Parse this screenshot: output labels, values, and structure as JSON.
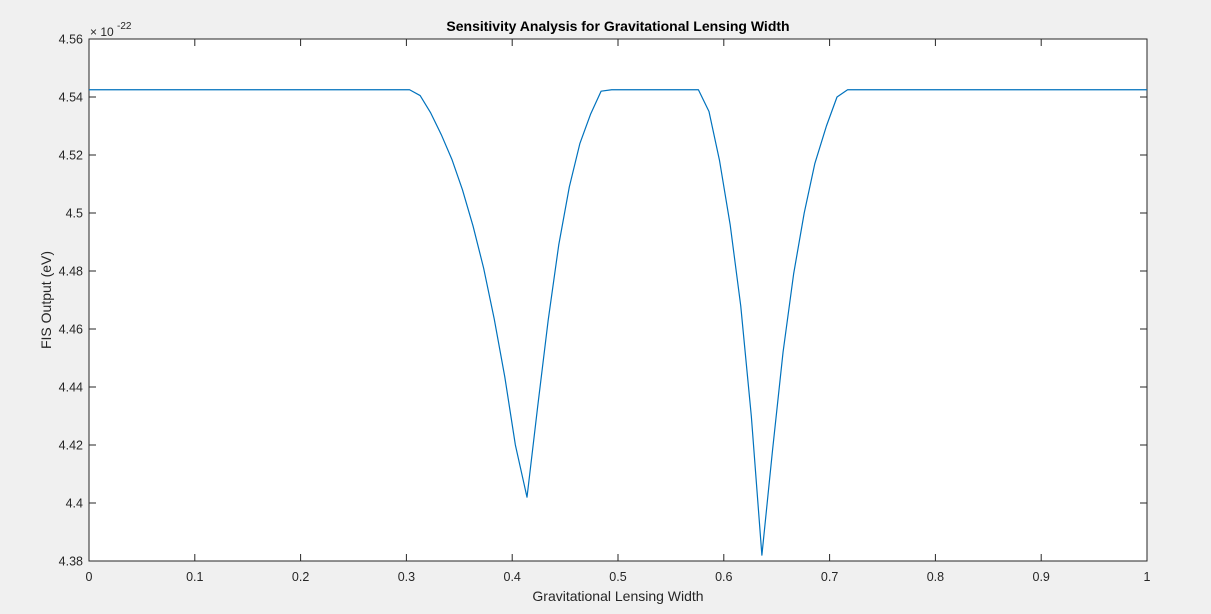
{
  "chart_data": {
    "type": "line",
    "title": "Sensitivity Analysis for Gravitational Lensing Width",
    "xlabel": "Gravitational Lensing Width",
    "ylabel": "FIS Output (eV)",
    "y_exponent_base": "× 10",
    "y_exponent_power": "-22",
    "xlim": [
      0,
      1
    ],
    "ylim": [
      4.38,
      4.56
    ],
    "x_ticks": [
      0,
      0.1,
      0.2,
      0.3,
      0.4,
      0.5,
      0.6,
      0.7,
      0.8,
      0.9,
      1
    ],
    "x_tick_labels": [
      "0",
      "0.1",
      "0.2",
      "0.3",
      "0.4",
      "0.5",
      "0.6",
      "0.7",
      "0.8",
      "0.9",
      "1"
    ],
    "y_ticks": [
      4.38,
      4.4,
      4.42,
      4.44,
      4.46,
      4.48,
      4.5,
      4.52,
      4.54,
      4.56
    ],
    "y_tick_labels": [
      "4.38",
      "4.4",
      "4.42",
      "4.44",
      "4.46",
      "4.48",
      "4.5",
      "4.52",
      "4.54",
      "4.56"
    ],
    "grid": false,
    "series": [
      {
        "color": "#0072bd",
        "x": [
          0,
          0.303,
          0.313,
          0.323,
          0.333,
          0.343,
          0.353,
          0.363,
          0.373,
          0.383,
          0.393,
          0.403,
          0.414,
          0.424,
          0.434,
          0.444,
          0.454,
          0.464,
          0.474,
          0.484,
          0.494,
          0.505,
          0.576,
          0.586,
          0.596,
          0.606,
          0.616,
          0.626,
          0.636,
          0.646,
          0.656,
          0.666,
          0.676,
          0.686,
          0.697,
          0.707,
          0.717,
          1
        ],
        "y": [
          4.5425,
          4.5425,
          4.5405,
          4.5345,
          4.527,
          4.5185,
          4.508,
          4.4955,
          4.481,
          4.4635,
          4.4435,
          4.42,
          4.402,
          4.433,
          4.463,
          4.489,
          4.509,
          4.524,
          4.534,
          4.542,
          4.5425,
          4.5425,
          4.5425,
          4.535,
          4.518,
          4.496,
          4.468,
          4.43,
          4.382,
          4.418,
          4.452,
          4.479,
          4.5,
          4.517,
          4.53,
          4.54,
          4.5425,
          4.5425
        ]
      }
    ]
  }
}
